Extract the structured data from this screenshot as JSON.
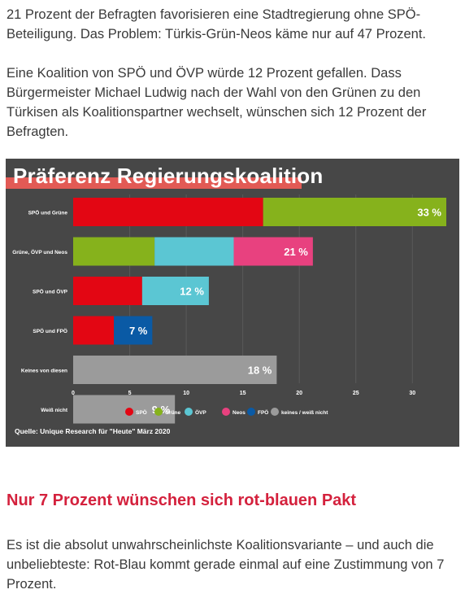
{
  "article": {
    "para1": "21 Prozent der Befragten favorisieren eine Stadtregierung ohne SPÖ-Beteiligung. Das Problem: Türkis-Grün-Neos käme nur auf 47 Prozent.",
    "para2": "Eine Koalition von SPÖ und ÖVP würde 12 Prozent gefallen. Dass Bürgermeister Michael Ludwig nach der Wahl von den Grünen zu den Türkisen als Koalitionspartner wechselt, wünschen sich 12 Prozent der Befragten.",
    "heading": "Nur 7 Prozent wünschen sich rot-blauen Pakt",
    "para3": "Es ist die absolut unwahrscheinlichste Koalitionsvariante – und auch die unbeliebteste: Rot-Blau kommt gerade einmal auf eine Zustimmung von 7 Prozent."
  },
  "chart_data": {
    "type": "bar",
    "orientation": "horizontal",
    "stacked": true,
    "title": "Präferenz Regierungskoalition",
    "source": "Quelle: Unique Research für \"Heute\" März 2020",
    "xlim": [
      0,
      33
    ],
    "xticks": [
      0,
      5,
      10,
      15,
      20,
      25,
      30
    ],
    "grid": true,
    "legend_position": "bottom",
    "legend": [
      {
        "name": "SPÖ",
        "color": "#e30613"
      },
      {
        "name": "Grüne",
        "color": "#86b21c"
      },
      {
        "name": "ÖVP",
        "color": "#5bc6d3"
      },
      {
        "name": "Neos",
        "color": "#e8417f"
      },
      {
        "name": "FPÖ",
        "color": "#0a5aa5"
      },
      {
        "name": "keines / weiß nicht",
        "color": "#9b9b9b"
      }
    ],
    "rows": [
      {
        "label": "SPÖ und Grüne",
        "total_label": "33 %",
        "segments": [
          {
            "party": "SPÖ",
            "value": 16.8,
            "color": "#e30613"
          },
          {
            "party": "Grüne",
            "value": 16.2,
            "color": "#86b21c"
          }
        ]
      },
      {
        "label": "Grüne, ÖVP und Neos",
        "total_label": "21 %",
        "segments": [
          {
            "party": "Grüne",
            "value": 7.2,
            "color": "#86b21c"
          },
          {
            "party": "ÖVP",
            "value": 7.0,
            "color": "#5bc6d3"
          },
          {
            "party": "Neos",
            "value": 7.0,
            "color": "#e8417f"
          }
        ]
      },
      {
        "label": "SPÖ und ÖVP",
        "total_label": "12 %",
        "segments": [
          {
            "party": "SPÖ",
            "value": 6.1,
            "color": "#e30613"
          },
          {
            "party": "ÖVP",
            "value": 5.9,
            "color": "#5bc6d3"
          }
        ]
      },
      {
        "label": "SPÖ und FPÖ",
        "total_label": "7 %",
        "segments": [
          {
            "party": "SPÖ",
            "value": 3.6,
            "color": "#e30613"
          },
          {
            "party": "FPÖ",
            "value": 3.4,
            "color": "#0a5aa5"
          }
        ]
      },
      {
        "label": "Keines von diesen",
        "total_label": "18 %",
        "segments": [
          {
            "party": "keines / weiß nicht",
            "value": 18,
            "color": "#9b9b9b"
          }
        ]
      },
      {
        "label": "Weiß nicht",
        "total_label": "9 %",
        "segments": [
          {
            "party": "keines / weiß nicht",
            "value": 9,
            "color": "#9b9b9b"
          }
        ]
      }
    ]
  },
  "colors": {
    "heading": "#d4213d",
    "chart_background": "#474747",
    "title_band": "#e25a55"
  }
}
